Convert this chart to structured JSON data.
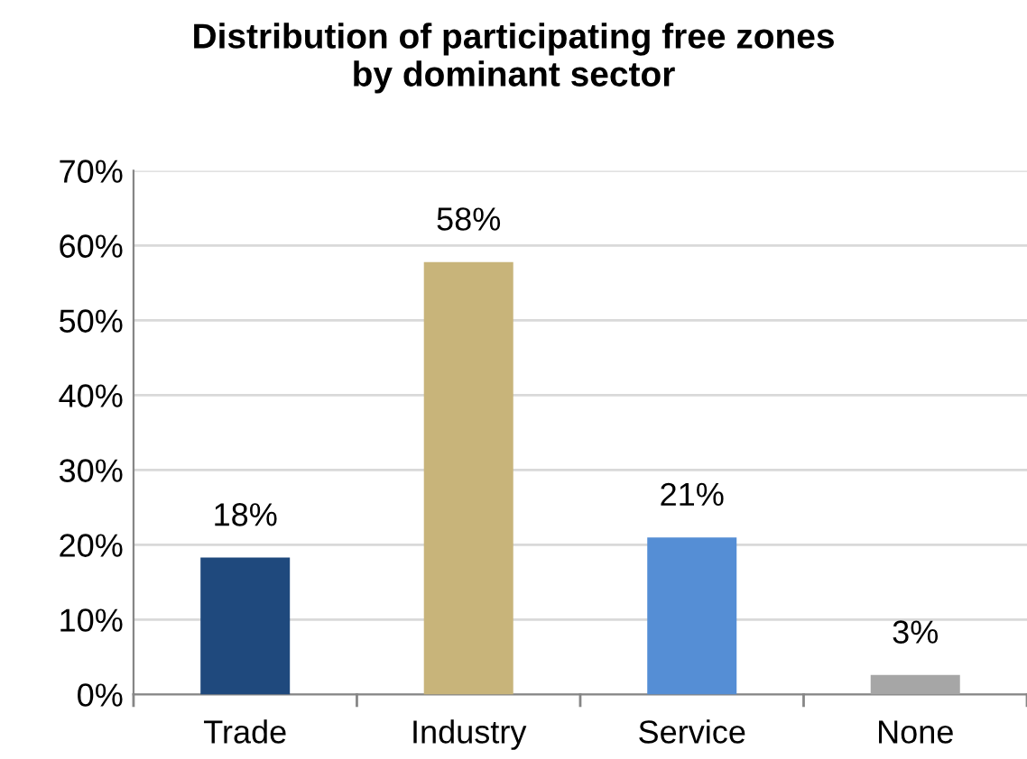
{
  "chart_data": {
    "type": "bar",
    "title": "Distribution of participating free zones\nby dominant sector",
    "categories": [
      "Trade",
      "Industry",
      "Service",
      "None"
    ],
    "values": [
      18.3,
      57.8,
      21,
      2.6
    ],
    "value_labels": [
      "18%",
      "58%",
      "21%",
      "3%"
    ],
    "colors": [
      "#1f497d",
      "#c8b47a",
      "#558ed5",
      "#a6a6a6"
    ],
    "ylim": [
      0,
      70
    ],
    "yticks": [
      {
        "value": 0,
        "label": "0%"
      },
      {
        "value": 10,
        "label": "10%"
      },
      {
        "value": 20,
        "label": "20%"
      },
      {
        "value": 30,
        "label": "30%"
      },
      {
        "value": 40,
        "label": "40%"
      },
      {
        "value": 50,
        "label": "50%"
      },
      {
        "value": 60,
        "label": "60%"
      },
      {
        "value": 70,
        "label": "70%"
      }
    ],
    "grid": "y",
    "legend": false
  }
}
